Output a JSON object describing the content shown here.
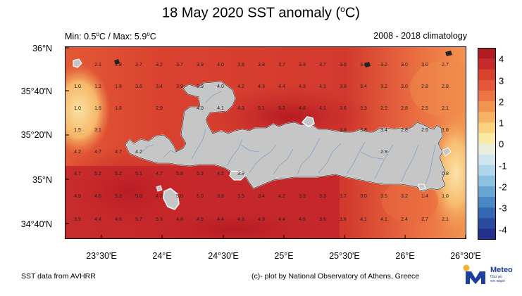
{
  "header": {
    "title_main": "18 May 2020 SST anomaly (",
    "title_deg": "o",
    "title_end": "C)",
    "minmax_a": "Min: 0.5",
    "minmax_b": "C / Max: 5.9",
    "minmax_c": "C",
    "deg": "o",
    "climatology": "2008 - 2018 climatology"
  },
  "axes": {
    "lat_labels": [
      "36°N",
      "35°40'N",
      "35°20'N",
      "35°N",
      "34°40'N"
    ],
    "lon_labels": [
      "23°30'E",
      "24°E",
      "24°30'E",
      "25°E",
      "25°30'E",
      "26°E",
      "26°30'E"
    ]
  },
  "colorbar": {
    "labels": [
      "4",
      "3",
      "2",
      "1",
      "0",
      "-1",
      "-2",
      "-3",
      "-4"
    ],
    "colors": [
      "#b01c22",
      "#c62a2a",
      "#d9412f",
      "#e5563a",
      "#ec7544",
      "#f2944f",
      "#f7b365",
      "#fad27f",
      "#fbeaa2",
      "#eaeedd",
      "#cfe6ef",
      "#afd6eb",
      "#8cc1e1",
      "#6aa6d4",
      "#4a88c4",
      "#3468b2",
      "#2a4aa0",
      "#22318c"
    ]
  },
  "footer": {
    "source": "SST data from AVHRR",
    "credit": "(c)- plot by National Observatory of Athens, Greece"
  },
  "logo": {
    "name": "Meteo",
    "tagline_1": "Όλα για",
    "tagline_2": "τον καιρό"
  },
  "grid_values": [
    [
      "2.1",
      "1.8",
      "2.7",
      "3.2",
      "3.7",
      "3.9",
      "4.0",
      "3.8",
      "3.9",
      "3.7",
      "3.9",
      "3.7",
      "3.8",
      "3.2",
      "3.2",
      "3.0",
      "3.0",
      "2.7"
    ],
    [
      "1.0",
      "1.1",
      "1.8",
      "3.6",
      "3.4",
      "3.9",
      "3.9",
      "4.0",
      "4.2",
      "4.3",
      "4.4",
      "4.3",
      "4.1",
      "3.8",
      "3.4",
      "3.2",
      "3.0",
      "2.8",
      "2.8"
    ],
    [
      "1.0",
      "1.6",
      "1.8",
      "",
      "2.9",
      "",
      "4.0",
      "4.1",
      "4.3",
      "5.1",
      "5.3",
      "4.8",
      "4.1",
      "3.6",
      "3.3",
      "2.9",
      "2.8",
      "2.5",
      "2.1"
    ],
    [
      "1.5",
      "3.1",
      "",
      "",
      "",
      "",
      "",
      "",
      "",
      "",
      "",
      "",
      "",
      "3.8",
      "3.8",
      "3.4",
      "2.8",
      "2.6",
      "1.6"
    ],
    [
      "4.2",
      "4.7",
      "4.7",
      "4.2",
      "",
      "",
      "",
      "",
      "",
      "",
      "",
      "",
      "",
      "",
      "",
      "2.9",
      "",
      "",
      ""
    ],
    [
      "4.7",
      "5.2",
      "5.2",
      "5.1",
      "4.7",
      "5.8",
      "5.3",
      "4.2",
      "3.8",
      "",
      "",
      "",
      "",
      "",
      "",
      "",
      "",
      "",
      "0.8"
    ],
    [
      "4.9",
      "4.6",
      "5.3",
      "5.0",
      "4.7",
      "5.0",
      "5.0",
      "3.8",
      "3.5",
      "3.4",
      "4.2",
      "3.9",
      "3.3",
      "3.7",
      "3.0",
      "3.5",
      "3.2",
      "1.4",
      "1.0"
    ],
    [
      "3.9",
      "4.4",
      "4.6",
      "5.7",
      "5.3",
      "4.8",
      "4.9",
      "4.4",
      "4.3",
      "4.3",
      "4.4",
      "4.6",
      "3.6",
      "3.6",
      "4.1",
      "4.1",
      "2.4",
      "2.7",
      "2.1"
    ]
  ]
}
